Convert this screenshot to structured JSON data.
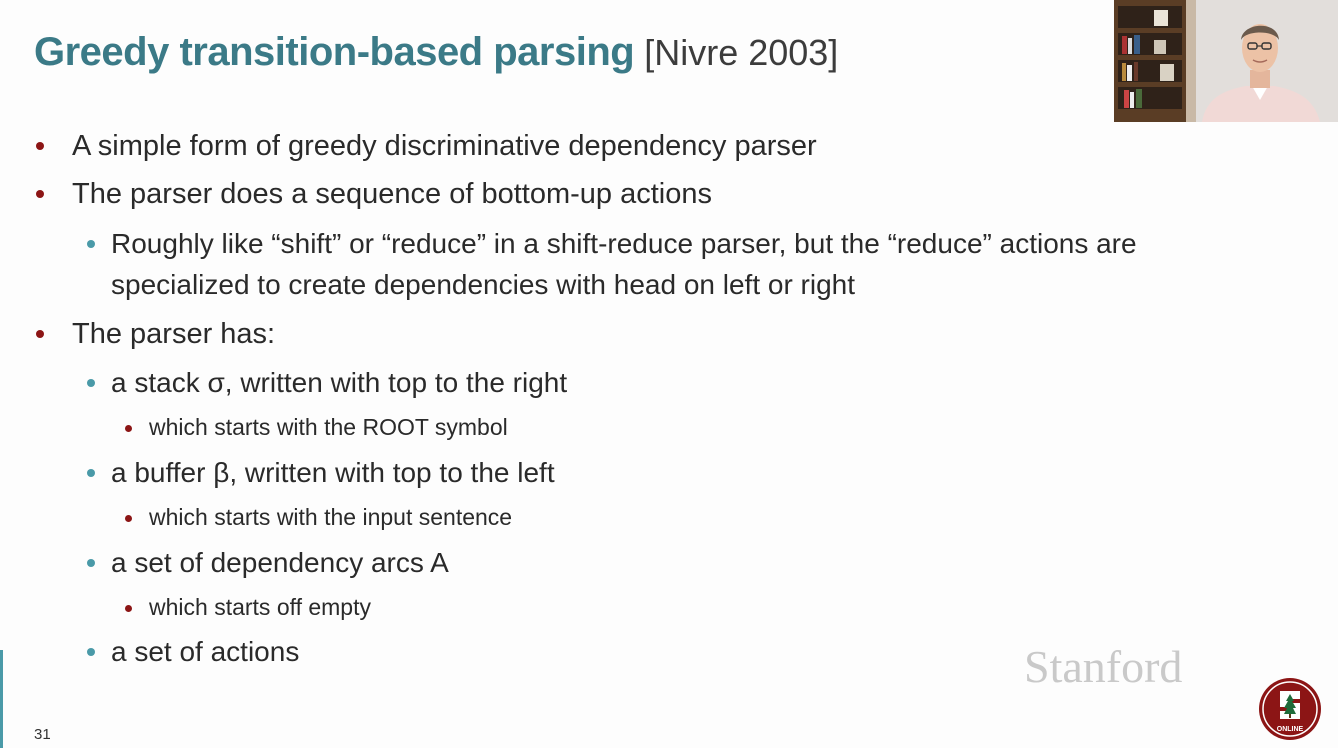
{
  "slide": {
    "title": "Greedy transition-based parsing",
    "citation": "[Nivre 2003]",
    "number": "31"
  },
  "bullets": [
    {
      "level": 1,
      "text": "A simple form of greedy discriminative dependency parser"
    },
    {
      "level": 1,
      "text": "The parser does a sequence of bottom-up actions"
    },
    {
      "level": 2,
      "text": "Roughly like “shift” or “reduce” in a shift-reduce parser, but the “reduce” actions are"
    },
    {
      "level": 2,
      "text": "specialized to create dependencies with head on left or right",
      "continuation": true
    },
    {
      "level": 1,
      "text": "The parser has:"
    },
    {
      "level": 2,
      "text": "a stack σ, written with top to the right"
    },
    {
      "level": 3,
      "text": "which starts with the ROOT symbol"
    },
    {
      "level": 2,
      "text": "a buffer β, written with top to the left"
    },
    {
      "level": 3,
      "text": "which starts with the input sentence"
    },
    {
      "level": 2,
      "text": "a set of dependency arcs A"
    },
    {
      "level": 3,
      "text": "which starts off empty"
    },
    {
      "level": 2,
      "text": "a set of actions"
    }
  ],
  "branding": {
    "wordmark": "Stanford",
    "badge_text": "ONLINE",
    "colors": {
      "title": "#3b7a87",
      "bullet_l1": "#8c1515",
      "bullet_l2": "#4a9aa8",
      "cardinal": "#8c1515"
    }
  },
  "webcam": {
    "icon": "presenter-video-feed"
  }
}
